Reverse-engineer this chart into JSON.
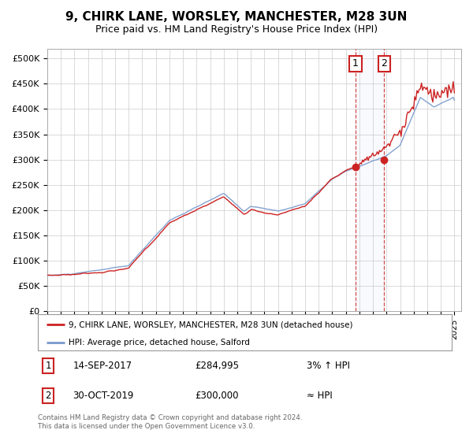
{
  "title": "9, CHIRK LANE, WORSLEY, MANCHESTER, M28 3UN",
  "subtitle": "Price paid vs. HM Land Registry's House Price Index (HPI)",
  "ylabel_ticks": [
    "£0",
    "£50K",
    "£100K",
    "£150K",
    "£200K",
    "£250K",
    "£300K",
    "£350K",
    "£400K",
    "£450K",
    "£500K"
  ],
  "ytick_values": [
    0,
    50000,
    100000,
    150000,
    200000,
    250000,
    300000,
    350000,
    400000,
    450000,
    500000
  ],
  "ylim": [
    0,
    520000
  ],
  "xlim_start": 1995.0,
  "xlim_end": 2025.5,
  "hpi_color": "#7799cc",
  "price_color": "#cc2222",
  "t1_date": 2017.71,
  "t1_price": 284995,
  "t2_date": 2019.83,
  "t2_price": 300000,
  "legend_line1": "9, CHIRK LANE, WORSLEY, MANCHESTER, M28 3UN (detached house)",
  "legend_line2": "HPI: Average price, detached house, Salford",
  "footer": "Contains HM Land Registry data © Crown copyright and database right 2024.\nThis data is licensed under the Open Government Licence v3.0.",
  "background_color": "#ffffff",
  "grid_color": "#cccccc",
  "box1_label": "1",
  "box2_label": "2",
  "ann1_date": "14-SEP-2017",
  "ann1_price": "£284,995",
  "ann1_hpi": "3% ↑ HPI",
  "ann2_date": "30-OCT-2019",
  "ann2_price": "£300,000",
  "ann2_hpi": "≈ HPI"
}
